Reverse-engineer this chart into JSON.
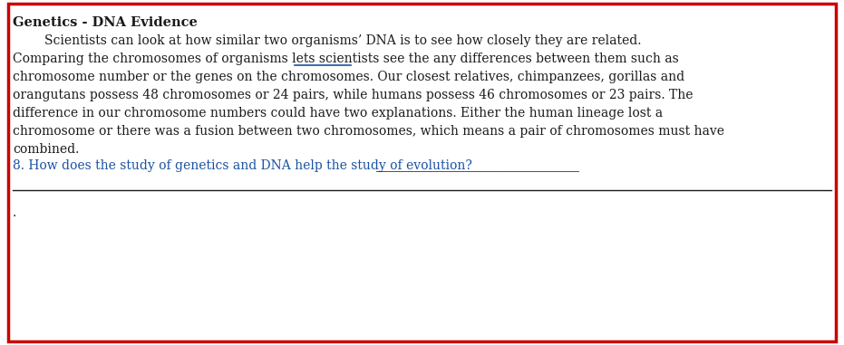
{
  "title": "Genetics - DNA Evidence",
  "line1": "        Scientists can look at how similar two organisms’ DNA is to see how closely they are related.",
  "line2_pre": "Comparing the chromosomes of organisms lets scientists ",
  "line2_ul": "see the any",
  "line2_post": " differences between them such as",
  "line3": "chromosome number or the genes on the chromosomes. Our closest relatives, chimpanzees, gorillas and",
  "line4": "orangutans possess 48 chromosomes or 24 pairs, while humans possess 46 chromosomes or 23 pairs. The",
  "line5": "difference in our chromosome numbers could have two explanations. Either the human lineage lost a",
  "line6": "chromosome or there was a fusion between two chromosomes, which means a pair of chromosomes must have",
  "line7": "combined.",
  "question_pre": "8. How does the study of genetics and DNA help the study of evolution? ",
  "question_line": "________________________________",
  "dot": ".",
  "border_color": "#cc0000",
  "text_color": "#1a1a1a",
  "blue_color": "#1a52a0",
  "bg_color": "#ffffff",
  "title_fontsize": 10.5,
  "body_fontsize": 10.0,
  "fig_width": 9.31,
  "fig_height": 3.81,
  "dpi": 100
}
